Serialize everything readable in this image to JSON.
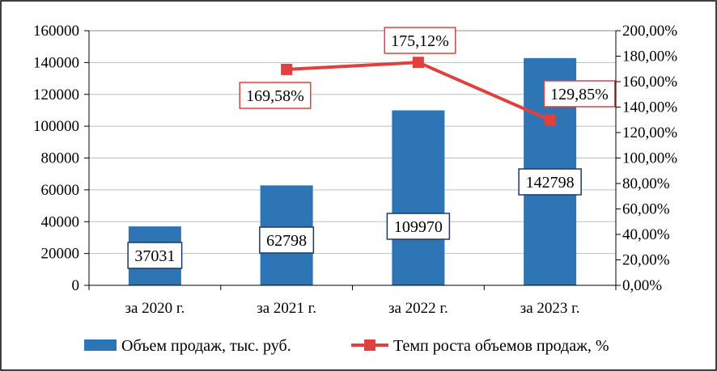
{
  "chart_data": {
    "type": "bar+line",
    "categories": [
      "за 2020 г.",
      "за 2021 г.",
      "за 2022 г.",
      "за 2023 г."
    ],
    "series": [
      {
        "name": "Объем продаж, тыс. руб.",
        "type": "bar",
        "axis": "left",
        "values": [
          37031,
          62798,
          109970,
          142798
        ],
        "labels": [
          "37031",
          "62798",
          "109970",
          "142798"
        ],
        "color": "#2E75B6"
      },
      {
        "name": "Темп роста объемов продаж, %",
        "type": "line",
        "axis": "right",
        "values": [
          null,
          169.58,
          175.12,
          129.85
        ],
        "labels": [
          "",
          "169,58%",
          "175,12%",
          "129,85%"
        ],
        "color": "#E0413E"
      }
    ],
    "y_left": {
      "range": [
        0,
        160000
      ],
      "ticks": [
        0,
        20000,
        40000,
        60000,
        80000,
        100000,
        120000,
        140000,
        160000
      ],
      "tick_labels": [
        "0",
        "20000",
        "40000",
        "60000",
        "80000",
        "100000",
        "120000",
        "140000",
        "160000"
      ]
    },
    "y_right": {
      "range": [
        0,
        200
      ],
      "ticks": [
        0,
        20,
        40,
        60,
        80,
        100,
        120,
        140,
        160,
        180,
        200
      ],
      "tick_labels": [
        "0,00%",
        "20,00%",
        "40,00%",
        "60,00%",
        "80,00%",
        "100,00%",
        "120,00%",
        "140,00%",
        "160,00%",
        "180,00%",
        "200,00%"
      ]
    },
    "grid": true,
    "legend_position": "bottom",
    "colors": {
      "bar": "#2E75B6",
      "line": "#E0413E",
      "bar_label_border": "#1F3864",
      "line_label_border": "#E0413E",
      "grid": "#BFBFBF",
      "frame": "#000000"
    }
  }
}
